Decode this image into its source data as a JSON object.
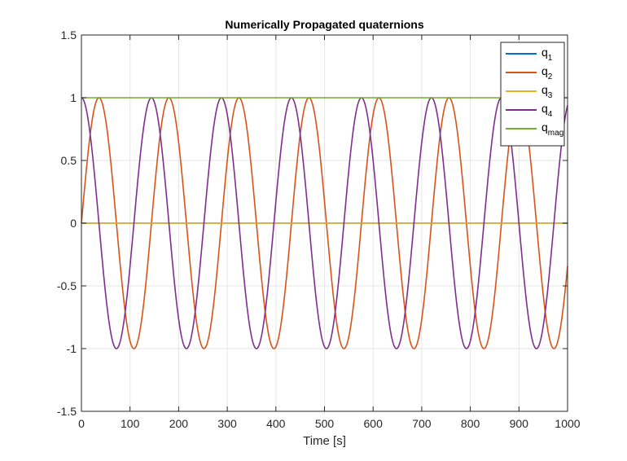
{
  "chart_data": {
    "type": "line",
    "title": "Numerically Propagated quaternions",
    "xlabel": "Time [s]",
    "ylabel": "",
    "xlim": [
      0,
      1000
    ],
    "ylim": [
      -1.5,
      1.5
    ],
    "xticks": [
      0,
      100,
      200,
      300,
      400,
      500,
      600,
      700,
      800,
      900,
      1000
    ],
    "yticks": [
      -1.5,
      -1,
      -0.5,
      0,
      0.5,
      1,
      1.5
    ],
    "xtick_labels": [
      "0",
      "100",
      "200",
      "300",
      "400",
      "500",
      "600",
      "700",
      "800",
      "900",
      "1000"
    ],
    "ytick_labels": [
      "-1.5",
      "-1",
      "-0.5",
      "0",
      "0.5",
      "1",
      "1.5"
    ],
    "grid": true,
    "legend_position": "top-right",
    "period_s": 144,
    "series": [
      {
        "name": "q",
        "sub": "1",
        "color": "#0072BD",
        "function": "zero"
      },
      {
        "name": "q",
        "sub": "2",
        "color": "#D95319",
        "function": "sin"
      },
      {
        "name": "q",
        "sub": "3",
        "color": "#EDB120",
        "function": "zero"
      },
      {
        "name": "q",
        "sub": "4",
        "color": "#7E2F8E",
        "function": "cos"
      },
      {
        "name": "q",
        "sub": "mag",
        "color": "#77AC30",
        "function": "one"
      }
    ]
  }
}
